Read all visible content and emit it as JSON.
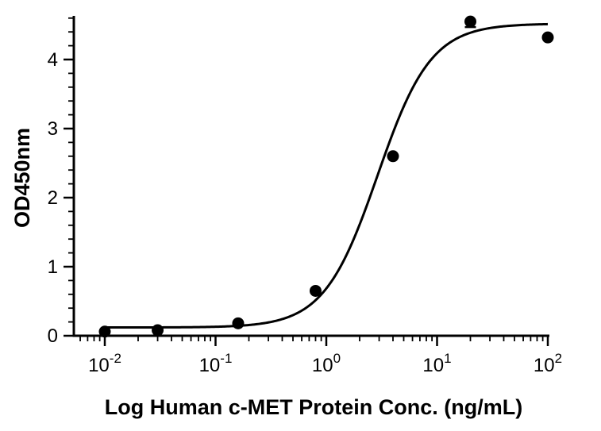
{
  "chart_data": {
    "type": "scatter",
    "xlabel": "Log Human c-MET Protein Conc. (ng/mL)",
    "ylabel": "OD450nm",
    "x_scale": "log",
    "xlim": [
      0.006,
      100
    ],
    "ylim": [
      0,
      4.6
    ],
    "x_ticks": [
      {
        "value": 0.01,
        "base": "10",
        "exp": "-2"
      },
      {
        "value": 0.1,
        "base": "10",
        "exp": "-1"
      },
      {
        "value": 1,
        "base": "10",
        "exp": "0"
      },
      {
        "value": 10,
        "base": "10",
        "exp": "1"
      },
      {
        "value": 100,
        "base": "10",
        "exp": "2"
      }
    ],
    "y_ticks": [
      0,
      1,
      2,
      3,
      4
    ],
    "grid": false,
    "points": [
      {
        "x": 0.01,
        "y": 0.06
      },
      {
        "x": 0.03,
        "y": 0.08
      },
      {
        "x": 0.16,
        "y": 0.18
      },
      {
        "x": 0.8,
        "y": 0.65
      },
      {
        "x": 4,
        "y": 2.6
      },
      {
        "x": 20,
        "y": 4.55,
        "err": 0.08
      },
      {
        "x": 100,
        "y": 4.32
      }
    ],
    "fit_curve": {
      "model": "4PL",
      "bottom": 0.12,
      "top": 4.52,
      "ec50": 2.9,
      "hill": 1.8
    }
  }
}
